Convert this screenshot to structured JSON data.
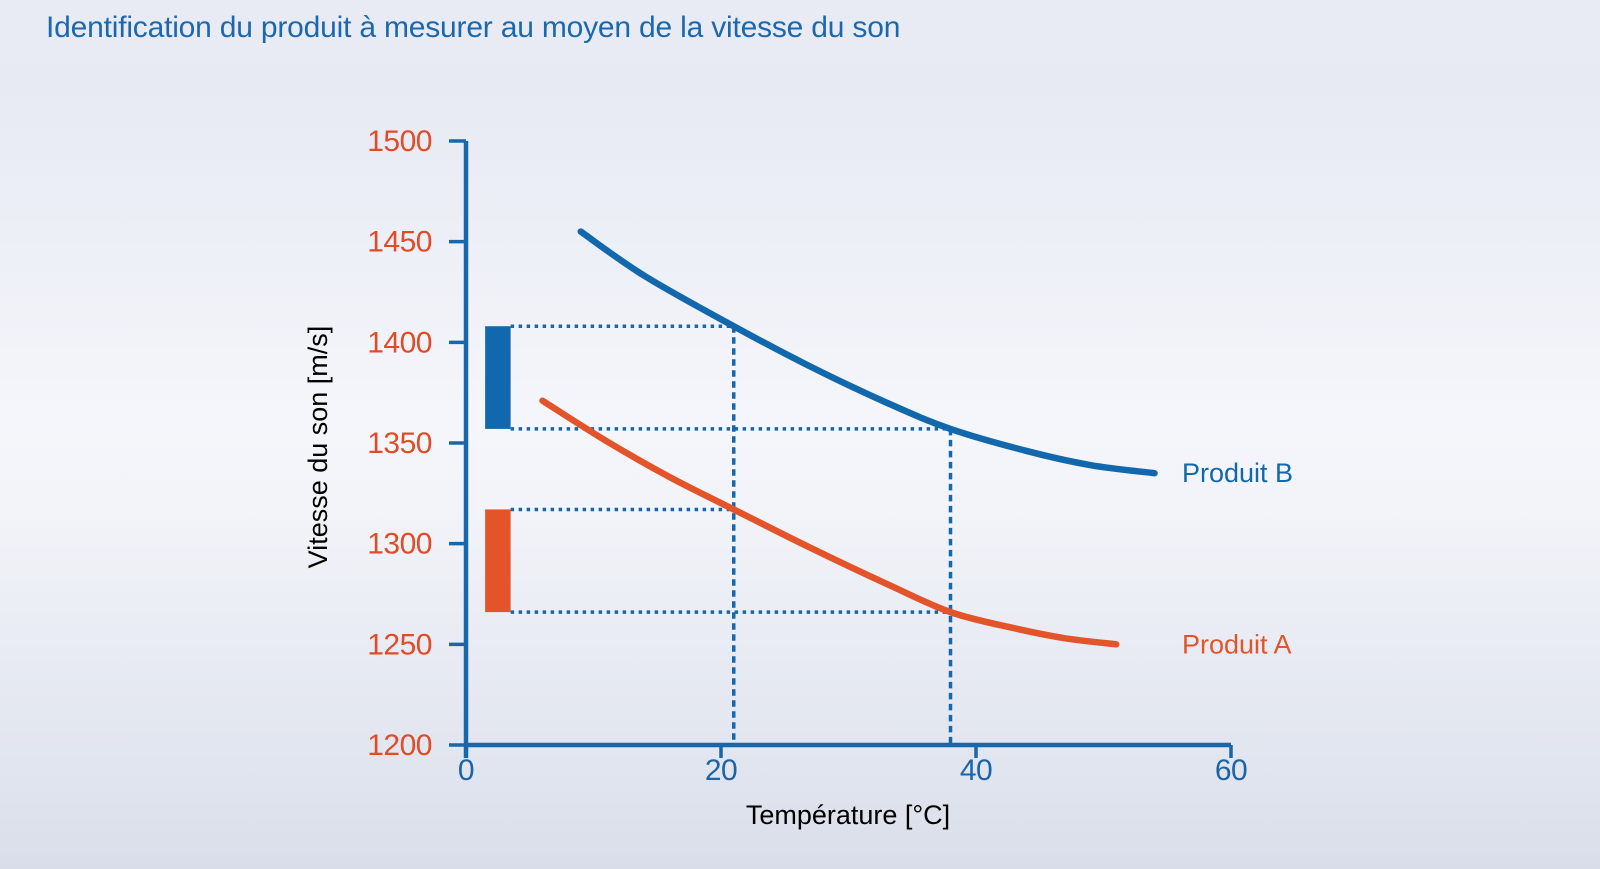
{
  "chart_data": {
    "type": "line",
    "title": "Identification du produit à mesurer au moyen de la vitesse du son",
    "xlabel": "Température [°C]",
    "ylabel": "Vitesse du son [m/s]",
    "xlim": [
      0,
      60
    ],
    "ylim": [
      1200,
      1500
    ],
    "xticks": [
      0,
      20,
      40,
      60
    ],
    "yticks": [
      1500,
      1450,
      1400,
      1350,
      1300,
      1250,
      1200
    ],
    "grid": false,
    "legend_position": "right of line ends",
    "series": [
      {
        "name": "Produit B",
        "color": "#1268ac",
        "points": [
          [
            9,
            1455
          ],
          [
            14,
            1433
          ],
          [
            21,
            1408
          ],
          [
            27,
            1388
          ],
          [
            33,
            1370
          ],
          [
            38,
            1357
          ],
          [
            44,
            1346
          ],
          [
            49,
            1339
          ],
          [
            54,
            1335
          ]
        ]
      },
      {
        "name": "Produit A",
        "color": "#e4542a",
        "points": [
          [
            6,
            1371
          ],
          [
            11,
            1351
          ],
          [
            16,
            1333
          ],
          [
            21,
            1317
          ],
          [
            27,
            1298
          ],
          [
            33,
            1280
          ],
          [
            38,
            1266
          ],
          [
            43,
            1258
          ],
          [
            47,
            1253
          ],
          [
            51,
            1250
          ]
        ]
      }
    ],
    "annotations": {
      "temperature_markers_c": [
        21,
        38
      ],
      "velocity_range_bar_x_c": [
        1.5,
        3.5
      ],
      "velocity_ranges": [
        {
          "product": "Produit B",
          "max_ms": 1408,
          "max_at_c": 21,
          "min_ms": 1357,
          "min_at_c": 38,
          "color": "#1268ac"
        },
        {
          "product": "Produit A",
          "max_ms": 1317,
          "max_at_c": 21,
          "min_ms": 1266,
          "min_at_c": 38,
          "color": "#e4542a"
        }
      ]
    },
    "colors": {
      "title_text": "#1c68ae",
      "axis": "#1767ac",
      "guide_lines": "#1767ac",
      "x_tick_text": "#1d64a6",
      "y_tick_text": "#e04c28",
      "xlabel_text": "#1d64a6",
      "ylabel_text": "#1d64a6"
    }
  }
}
